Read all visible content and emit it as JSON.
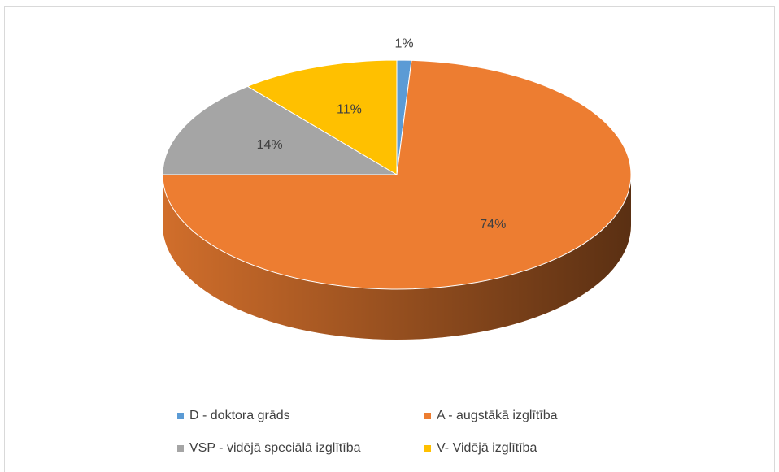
{
  "chart_data": {
    "type": "pie",
    "categories": [
      "D - doktora grāds",
      "A - augstākā izglītība",
      "VSP - vidējā speciālā izglītība",
      "V- Vidējā izglītība"
    ],
    "values": [
      1,
      74,
      14,
      11
    ],
    "value_labels": [
      "1%",
      "74%",
      "14%",
      "11%"
    ],
    "colors": [
      "#5b9bd5",
      "#ed7d31",
      "#a5a5a5",
      "#ffc000"
    ],
    "legend": "bottom"
  }
}
